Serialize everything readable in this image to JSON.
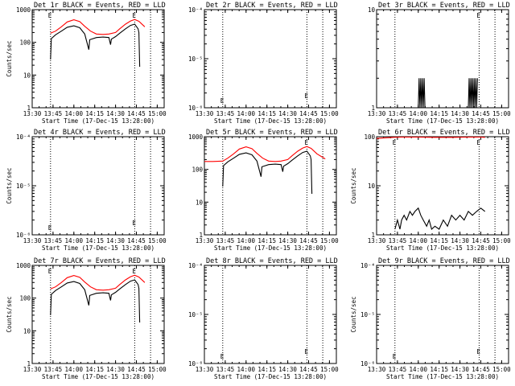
{
  "chart_data": [
    {
      "type": "line",
      "title": "Det 1r BLACK = Events, RED = LLD",
      "xlabel": "Start Time (17-Dec-15 13:28:00)",
      "ylabel": "Counts/sec",
      "yscale": "log",
      "ylim": [
        1,
        1000
      ],
      "yticks": [
        {
          "v": 1,
          "label": "1"
        },
        {
          "v": 10,
          "label": "10"
        },
        {
          "v": 100,
          "label": "100"
        },
        {
          "v": 1000,
          "label": "1000"
        }
      ],
      "xticks": [
        "13:30",
        "13:45",
        "14:00",
        "14:15",
        "14:30",
        "14:45",
        "15:00"
      ],
      "series": [
        {
          "color": "#ff0000",
          "x": [
            13.72,
            13.78,
            13.85,
            13.92,
            14.0,
            14.07,
            14.13,
            14.2,
            14.27,
            14.35,
            14.42,
            14.5,
            14.55,
            14.62,
            14.68,
            14.73,
            14.78,
            14.85
          ],
          "y": [
            190,
            220,
            300,
            420,
            490,
            430,
            310,
            220,
            180,
            175,
            180,
            200,
            260,
            360,
            450,
            500,
            440,
            300
          ]
        },
        {
          "color": "#000000",
          "x": [
            13.72,
            13.73,
            13.78,
            13.85,
            13.92,
            14.0,
            14.07,
            14.13,
            14.18,
            14.19,
            14.27,
            14.35,
            14.42,
            14.44,
            14.45,
            14.5,
            14.55,
            14.62,
            14.68,
            14.73,
            14.77,
            14.78,
            14.79
          ],
          "y": [
            30,
            130,
            170,
            220,
            290,
            320,
            280,
            180,
            60,
            120,
            140,
            145,
            140,
            85,
            125,
            150,
            190,
            260,
            330,
            360,
            260,
            200,
            18
          ]
        }
      ],
      "annotations": [
        {
          "x": 13.72,
          "text": "E"
        },
        {
          "x": 14.73,
          "text": "E"
        }
      ]
    },
    {
      "type": "line",
      "title": "Det 2r BLACK = Events, RED = LLD",
      "xlabel": "Start Time (17-Dec-15 13:28:00)",
      "ylabel": "",
      "yscale": "log",
      "ylim": [
        1e-06,
        0.0001
      ],
      "yticks": [
        {
          "v": 1e-06,
          "label": "10⁻⁶"
        },
        {
          "v": 1e-05,
          "label": "10⁻⁵"
        },
        {
          "v": 0.0001,
          "label": "10⁻⁴"
        }
      ],
      "xticks": [
        "13:30",
        "13:45",
        "14:00",
        "14:15",
        "14:30",
        "14:45",
        "15:00"
      ],
      "series": [],
      "annotations": [
        {
          "x": 13.72,
          "text": "E"
        },
        {
          "x": 14.73,
          "text": "E"
        }
      ]
    },
    {
      "type": "line",
      "title": "Det 3r BLACK = Events, RED = LLD",
      "xlabel": "Start Time (17-Dec-15 13:28:00)",
      "ylabel": "",
      "yscale": "log",
      "ylim": [
        1,
        10
      ],
      "yticks": [
        {
          "v": 1,
          "label": "1"
        },
        {
          "v": 10,
          "label": "10"
        }
      ],
      "xticks": [
        "13:30",
        "13:45",
        "14:00",
        "14:15",
        "14:30",
        "14:45",
        "15:00"
      ],
      "series": [
        {
          "color": "#000000",
          "x": [
            14.0,
            14.01,
            14.02,
            14.03,
            14.04,
            14.05,
            14.06,
            14.07,
            14.08,
            14.6,
            14.61,
            14.62,
            14.63,
            14.64,
            14.65,
            14.66,
            14.67,
            14.68,
            14.69,
            14.7,
            14.71
          ],
          "y": [
            1,
            2,
            1,
            2,
            1,
            2,
            1,
            2,
            1,
            1,
            2,
            1,
            2,
            1,
            2,
            1,
            2,
            1,
            2,
            1,
            2
          ]
        }
      ],
      "annotations": [
        {
          "x": 14.73,
          "text": "E"
        }
      ]
    },
    {
      "type": "line",
      "title": "Det 4r BLACK = Events, RED = LLD",
      "xlabel": "Start Time (17-Dec-15 13:28:00)",
      "ylabel": "Counts/sec",
      "yscale": "log",
      "ylim": [
        1e-06,
        0.0001
      ],
      "yticks": [
        {
          "v": 1e-06,
          "label": "10⁻⁶"
        },
        {
          "v": 1e-05,
          "label": "10⁻⁵"
        },
        {
          "v": 0.0001,
          "label": "10⁻⁴"
        }
      ],
      "xticks": [
        "13:30",
        "13:45",
        "14:00",
        "14:15",
        "14:30",
        "14:45",
        "15:00"
      ],
      "series": [],
      "annotations": [
        {
          "x": 13.72,
          "text": "E"
        },
        {
          "x": 14.73,
          "text": "E"
        }
      ]
    },
    {
      "type": "line",
      "title": "Det 5r BLACK = Events, RED = LLD",
      "xlabel": "Start Time (17-Dec-15 13:28:00)",
      "ylabel": "",
      "yscale": "log",
      "ylim": [
        1,
        1000
      ],
      "yticks": [
        {
          "v": 1,
          "label": "1"
        },
        {
          "v": 10,
          "label": "10"
        },
        {
          "v": 100,
          "label": "100"
        },
        {
          "v": 1000,
          "label": "1000"
        }
      ],
      "xticks": [
        "13:30",
        "13:45",
        "14:00",
        "14:15",
        "14:30",
        "14:45",
        "15:00"
      ],
      "series": [
        {
          "color": "#ff0000",
          "x": [
            13.5,
            13.6,
            13.72,
            13.78,
            13.85,
            13.92,
            14.0,
            14.07,
            14.13,
            14.2,
            14.27,
            14.35,
            14.42,
            14.5,
            14.55,
            14.62,
            14.68,
            14.73,
            14.78,
            14.85,
            14.95
          ],
          "y": [
            175,
            175,
            180,
            220,
            300,
            420,
            490,
            430,
            310,
            220,
            180,
            175,
            180,
            200,
            260,
            360,
            450,
            500,
            440,
            300,
            210
          ]
        },
        {
          "color": "#000000",
          "x": [
            13.72,
            13.73,
            13.78,
            13.85,
            13.92,
            14.0,
            14.07,
            14.13,
            14.18,
            14.19,
            14.27,
            14.35,
            14.42,
            14.44,
            14.45,
            14.5,
            14.55,
            14.62,
            14.68,
            14.73,
            14.77,
            14.78,
            14.79
          ],
          "y": [
            30,
            130,
            170,
            220,
            290,
            320,
            280,
            180,
            60,
            120,
            140,
            145,
            140,
            85,
            125,
            150,
            190,
            260,
            330,
            360,
            260,
            200,
            18
          ]
        }
      ],
      "annotations": [
        {
          "x": 14.73,
          "text": "E"
        }
      ]
    },
    {
      "type": "line",
      "title": "Det 6r BLACK = Events, RED = LLD",
      "xlabel": "Start Time (17-Dec-15 13:28:00)",
      "ylabel": "Counts/sec",
      "yscale": "log",
      "ylim": [
        1,
        100
      ],
      "yticks": [
        {
          "v": 1,
          "label": "1"
        },
        {
          "v": 10,
          "label": "10"
        },
        {
          "v": 100,
          "label": "100"
        }
      ],
      "xticks": [
        "13:30",
        "13:45",
        "14:00",
        "14:15",
        "14:30",
        "14:45",
        "15:00"
      ],
      "series": [
        {
          "color": "#ff0000",
          "x": [
            13.5,
            13.6,
            13.7,
            13.8,
            14.0,
            14.2,
            14.4,
            14.6,
            14.75,
            14.8
          ],
          "y": [
            92,
            95,
            97,
            98,
            98,
            97,
            97,
            98,
            98,
            97
          ]
        },
        {
          "color": "#000000",
          "x": [
            13.72,
            13.75,
            13.78,
            13.8,
            13.83,
            13.86,
            13.9,
            13.93,
            13.96,
            14.0,
            14.03,
            14.06,
            14.1,
            14.13,
            14.16,
            14.2,
            14.25,
            14.3,
            14.35,
            14.4,
            14.45,
            14.5,
            14.55,
            14.6,
            14.65,
            14.7,
            14.75,
            14.8
          ],
          "y": [
            1.3,
            2,
            1.3,
            2,
            2.5,
            2,
            3,
            2.5,
            3,
            3.5,
            2.5,
            2,
            1.5,
            2,
            1.3,
            1.5,
            1.3,
            2,
            1.5,
            2.5,
            2,
            2.5,
            2,
            3,
            2.5,
            3,
            3.5,
            3
          ]
        }
      ],
      "annotations": [
        {
          "x": 13.72,
          "text": "E"
        },
        {
          "x": 14.73,
          "text": "E"
        }
      ]
    },
    {
      "type": "line",
      "title": "Det 7r BLACK = Events, RED = LLD",
      "xlabel": "Start Time (17-Dec-15 13:28:00)",
      "ylabel": "Counts/sec",
      "yscale": "log",
      "ylim": [
        1,
        1000
      ],
      "yticks": [
        {
          "v": 1,
          "label": "1"
        },
        {
          "v": 10,
          "label": "10"
        },
        {
          "v": 100,
          "label": "100"
        },
        {
          "v": 1000,
          "label": "1000"
        }
      ],
      "xticks": [
        "13:30",
        "13:45",
        "14:00",
        "14:15",
        "14:30",
        "14:45",
        "15:00"
      ],
      "series": [
        {
          "color": "#ff0000",
          "x": [
            13.72,
            13.78,
            13.85,
            13.92,
            14.0,
            14.07,
            14.13,
            14.2,
            14.27,
            14.35,
            14.42,
            14.5,
            14.55,
            14.62,
            14.68,
            14.73,
            14.78,
            14.85
          ],
          "y": [
            190,
            220,
            300,
            420,
            490,
            430,
            310,
            220,
            180,
            175,
            180,
            200,
            260,
            360,
            450,
            500,
            440,
            300
          ]
        },
        {
          "color": "#000000",
          "x": [
            13.72,
            13.73,
            13.78,
            13.85,
            13.92,
            14.0,
            14.07,
            14.13,
            14.18,
            14.19,
            14.27,
            14.35,
            14.42,
            14.44,
            14.45,
            14.5,
            14.55,
            14.62,
            14.68,
            14.73,
            14.77,
            14.78,
            14.79
          ],
          "y": [
            30,
            130,
            170,
            220,
            290,
            320,
            280,
            180,
            60,
            120,
            140,
            145,
            140,
            85,
            125,
            150,
            190,
            260,
            330,
            360,
            260,
            200,
            18
          ]
        }
      ],
      "annotations": [
        {
          "x": 13.72,
          "text": "E"
        },
        {
          "x": 14.73,
          "text": "E"
        }
      ]
    },
    {
      "type": "line",
      "title": "Det 8r BLACK = Events, RED = LLD",
      "xlabel": "Start Time (17-Dec-15 13:28:00)",
      "ylabel": "",
      "yscale": "log",
      "ylim": [
        1e-06,
        0.0001
      ],
      "yticks": [
        {
          "v": 1e-06,
          "label": "10⁻⁶"
        },
        {
          "v": 1e-05,
          "label": "10⁻⁵"
        },
        {
          "v": 0.0001,
          "label": "10⁻⁴"
        }
      ],
      "xticks": [
        "13:30",
        "13:45",
        "14:00",
        "14:15",
        "14:30",
        "14:45",
        "15:00"
      ],
      "series": [],
      "annotations": [
        {
          "x": 13.72,
          "text": "E"
        },
        {
          "x": 14.73,
          "text": "E"
        }
      ]
    },
    {
      "type": "line",
      "title": "Det 9r BLACK = Events, RED = LLD",
      "xlabel": "Start Time (17-Dec-15 13:28:00)",
      "ylabel": "Counts/sec",
      "yscale": "log",
      "ylim": [
        1e-06,
        0.0001
      ],
      "yticks": [
        {
          "v": 1e-06,
          "label": "10⁻⁶"
        },
        {
          "v": 1e-05,
          "label": "10⁻⁵"
        },
        {
          "v": 0.0001,
          "label": "10⁻⁴"
        }
      ],
      "xticks": [
        "13:30",
        "13:45",
        "14:00",
        "14:15",
        "14:30",
        "14:45",
        "15:00"
      ],
      "series": [],
      "annotations": [
        {
          "x": 13.72,
          "text": "E"
        },
        {
          "x": 14.73,
          "text": "E"
        }
      ]
    }
  ]
}
